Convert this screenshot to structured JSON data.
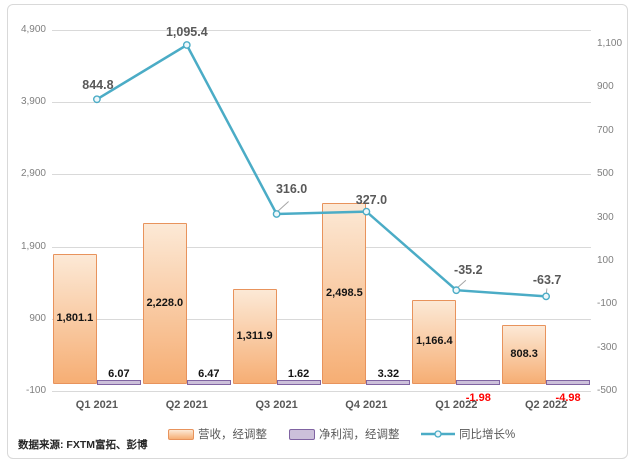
{
  "source_note": "数据来源: FXTM富拓、彭博",
  "chart_data": {
    "type": "combo-bar-line",
    "title": "",
    "categories": [
      "Q1 2021",
      "Q2 2021",
      "Q3 2021",
      "Q4 2021",
      "Q1 2022",
      "Q2 2022"
    ],
    "left_axis": {
      "min": -100,
      "max": 4900,
      "tick_step": 1000,
      "tick_labels": [
        "4,900",
        "3,900",
        "2,900",
        "1,900",
        "900",
        "-100"
      ]
    },
    "right_axis": {
      "min": -500,
      "max": 1100,
      "tick_step": 200,
      "tick_labels": [
        "1,100",
        "900",
        "700",
        "500",
        "300",
        "100",
        "-100",
        "-300",
        "-500"
      ]
    },
    "grid": true,
    "legend_position": "bottom",
    "negative_label_color": "#ff0000",
    "series": [
      {
        "name": "营收，经调整",
        "type": "bar",
        "axis": "left",
        "values": [
          1801.1,
          2228.0,
          1311.9,
          2498.5,
          1166.4,
          808.3
        ],
        "value_labels": [
          "1,801.1",
          "2,228.0",
          "1,311.9",
          "2,498.5",
          "1,166.4",
          "808.3"
        ],
        "colors": {
          "fill_top": "#fce9d6",
          "fill_bottom": "#f6ae74",
          "border": "#e8935c"
        }
      },
      {
        "name": "净利润，经调整",
        "type": "bar",
        "axis": "left",
        "values": [
          6.07,
          6.47,
          1.62,
          3.32,
          -1.98,
          -4.98
        ],
        "value_labels": [
          "6.07",
          "6.47",
          "1.62",
          "3.32",
          "-1.98",
          "-4.98"
        ],
        "colors": {
          "fill": "#ccc0da",
          "border": "#8064a2"
        }
      },
      {
        "name": "同比增长%",
        "type": "line",
        "axis": "right",
        "values": [
          844.8,
          1095.4,
          316.0,
          327.0,
          -35.2,
          -63.7
        ],
        "value_labels": [
          "844.8",
          "1,095.4",
          "316.0",
          "327.0",
          "-35.2",
          "-63.7"
        ],
        "label_offsets": [
          {
            "dx": 1,
            "dy": -14,
            "leader": false
          },
          {
            "dx": 0,
            "dy": -13,
            "leader": false
          },
          {
            "dx": 15,
            "dy": -25,
            "leader": true
          },
          {
            "dx": 5,
            "dy": -12,
            "leader": false
          },
          {
            "dx": 12,
            "dy": -20,
            "leader": true
          },
          {
            "dx": 1,
            "dy": -16,
            "leader": true
          }
        ],
        "colors": {
          "line": "#4bacc6",
          "marker_fill": "#eef7fa",
          "leader": "#a6a6a6"
        }
      }
    ]
  }
}
